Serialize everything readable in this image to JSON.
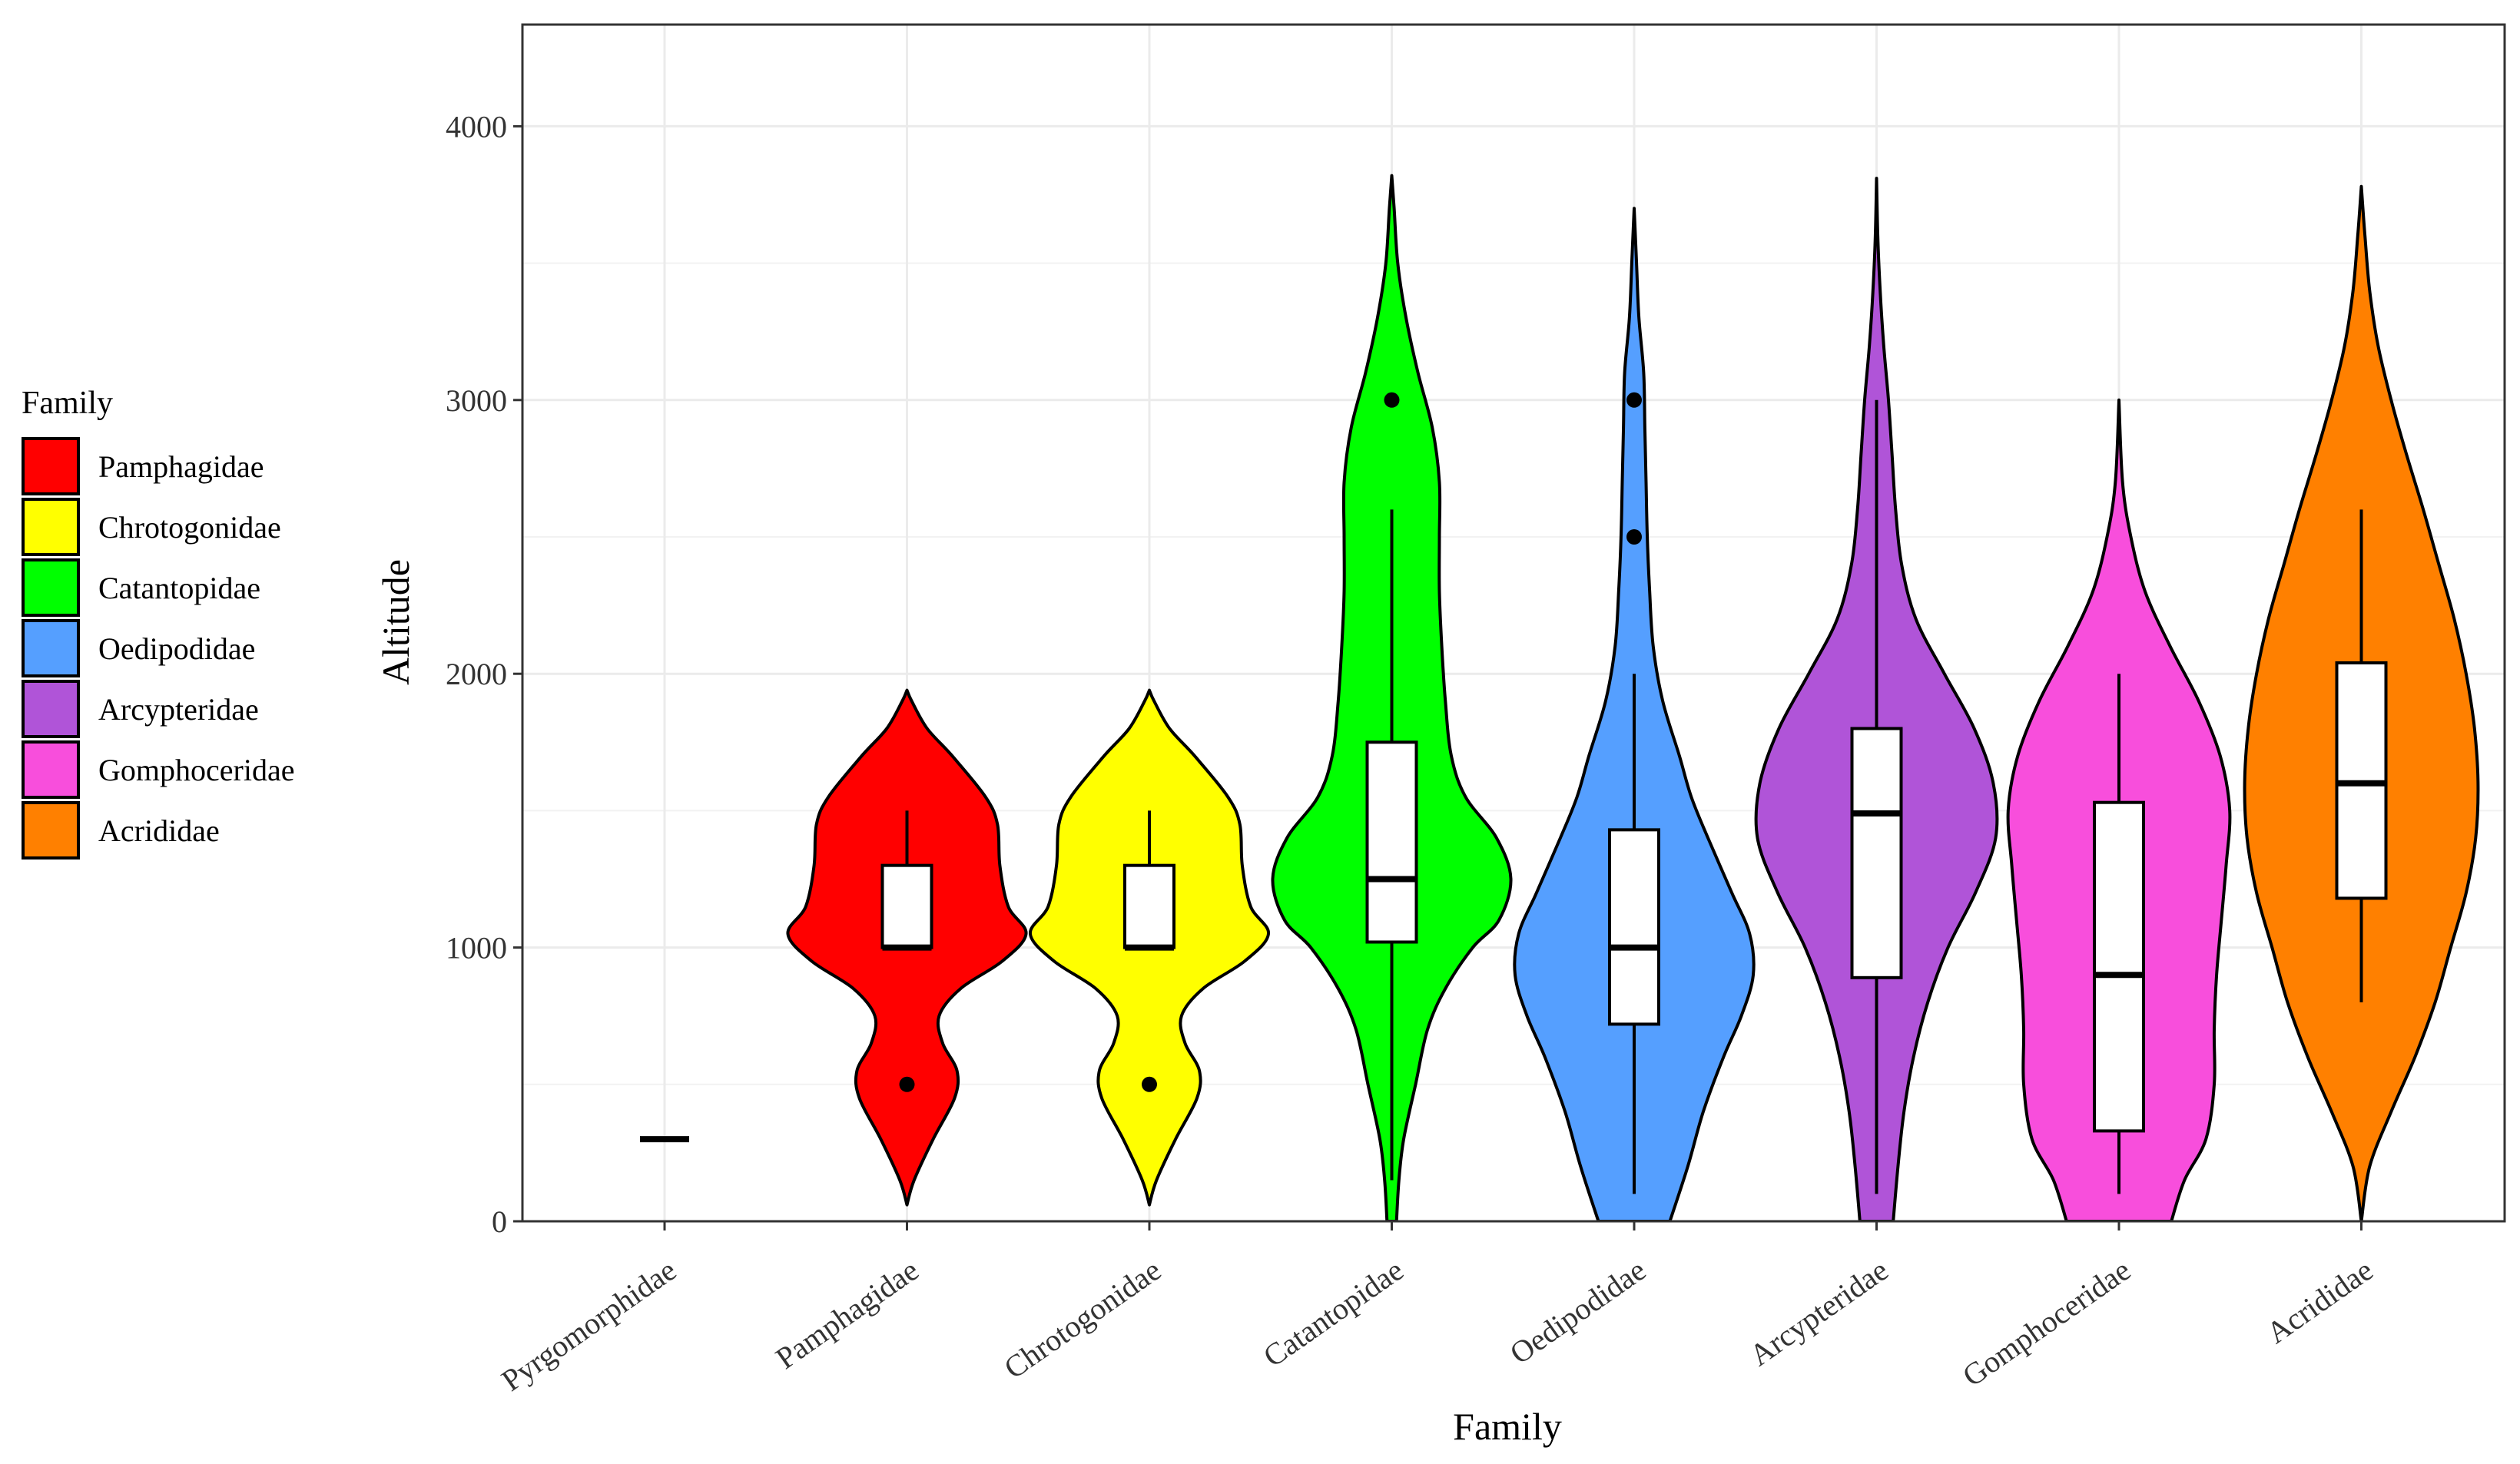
{
  "chart_data": {
    "type": "violin",
    "title": "",
    "xlabel": "Family",
    "ylabel": "Altitude",
    "ylim": [
      0,
      4300
    ],
    "yticks": [
      0,
      1000,
      2000,
      3000,
      4000
    ],
    "grid": true,
    "legend": {
      "title": "Family",
      "position": "left",
      "entries": [
        {
          "name": "Pamphagidae",
          "color": "#FF0000"
        },
        {
          "name": "Chrotogonidae",
          "color": "#FFFF00"
        },
        {
          "name": "Catantopidae",
          "color": "#00FF00"
        },
        {
          "name": "Oedipodidae",
          "color": "#559FFF"
        },
        {
          "name": "Arcypteridae",
          "color": "#B054D8"
        },
        {
          "name": "Gomphoceridae",
          "color": "#F84EDC"
        },
        {
          "name": "Acrididae",
          "color": "#FF8000"
        }
      ]
    },
    "categories": [
      "Pyrgomorphidae",
      "Pamphagidae",
      "Chrotogonidae",
      "Catantopidae",
      "Oedipodidae",
      "Arcypteridae",
      "Gomphoceridae",
      "Acrididae"
    ],
    "series": [
      {
        "name": "Pyrgomorphidae",
        "color": "#000000",
        "median": 300,
        "q1": 300,
        "q3": 300,
        "whisker_low": 300,
        "whisker_high": 300,
        "outliers": [],
        "density": [
          [
            300,
            0.1
          ]
        ]
      },
      {
        "name": "Pamphagidae",
        "color": "#FF0000",
        "median": 1000,
        "q1": 1000,
        "q3": 1300,
        "whisker_low": 1000,
        "whisker_high": 1500,
        "outliers": [
          500
        ],
        "density": [
          [
            60,
            0
          ],
          [
            150,
            0.06
          ],
          [
            300,
            0.22
          ],
          [
            450,
            0.4
          ],
          [
            550,
            0.42
          ],
          [
            650,
            0.3
          ],
          [
            750,
            0.27
          ],
          [
            850,
            0.45
          ],
          [
            950,
            0.8
          ],
          [
            1050,
            1.0
          ],
          [
            1150,
            0.85
          ],
          [
            1300,
            0.78
          ],
          [
            1450,
            0.76
          ],
          [
            1550,
            0.66
          ],
          [
            1700,
            0.38
          ],
          [
            1800,
            0.17
          ],
          [
            1900,
            0.04
          ],
          [
            1940,
            0
          ]
        ]
      },
      {
        "name": "Chrotogonidae",
        "color": "#FFFF00",
        "median": 1000,
        "q1": 1000,
        "q3": 1300,
        "whisker_low": 1000,
        "whisker_high": 1500,
        "outliers": [
          500
        ],
        "density": [
          [
            60,
            0
          ],
          [
            150,
            0.06
          ],
          [
            300,
            0.22
          ],
          [
            450,
            0.4
          ],
          [
            550,
            0.42
          ],
          [
            650,
            0.3
          ],
          [
            750,
            0.27
          ],
          [
            850,
            0.45
          ],
          [
            950,
            0.8
          ],
          [
            1050,
            1.0
          ],
          [
            1150,
            0.85
          ],
          [
            1300,
            0.78
          ],
          [
            1450,
            0.76
          ],
          [
            1550,
            0.66
          ],
          [
            1700,
            0.38
          ],
          [
            1800,
            0.17
          ],
          [
            1900,
            0.04
          ],
          [
            1940,
            0
          ]
        ]
      },
      {
        "name": "Catantopidae",
        "color": "#00FF00",
        "median": 1250,
        "q1": 1020,
        "q3": 1750,
        "whisker_low": 150,
        "whisker_high": 2600,
        "outliers": [
          3000
        ],
        "density": [
          [
            0,
            0.04
          ],
          [
            150,
            0.06
          ],
          [
            300,
            0.1
          ],
          [
            500,
            0.2
          ],
          [
            700,
            0.3
          ],
          [
            850,
            0.45
          ],
          [
            1000,
            0.68
          ],
          [
            1100,
            0.9
          ],
          [
            1250,
            1.0
          ],
          [
            1400,
            0.88
          ],
          [
            1550,
            0.62
          ],
          [
            1700,
            0.5
          ],
          [
            1900,
            0.45
          ],
          [
            2100,
            0.42
          ],
          [
            2300,
            0.4
          ],
          [
            2500,
            0.4
          ],
          [
            2700,
            0.4
          ],
          [
            2900,
            0.34
          ],
          [
            3100,
            0.22
          ],
          [
            3300,
            0.12
          ],
          [
            3500,
            0.05
          ],
          [
            3700,
            0.02
          ],
          [
            3820,
            0
          ]
        ]
      },
      {
        "name": "Oedipodidae",
        "color": "#559FFF",
        "median": 1000,
        "q1": 720,
        "q3": 1430,
        "whisker_low": 100,
        "whisker_high": 2000,
        "outliers": [
          2500,
          3000
        ],
        "density": [
          [
            0,
            0.3
          ],
          [
            200,
            0.45
          ],
          [
            400,
            0.58
          ],
          [
            600,
            0.75
          ],
          [
            750,
            0.9
          ],
          [
            900,
            1.0
          ],
          [
            1050,
            0.97
          ],
          [
            1200,
            0.82
          ],
          [
            1400,
            0.62
          ],
          [
            1550,
            0.48
          ],
          [
            1700,
            0.38
          ],
          [
            1900,
            0.24
          ],
          [
            2100,
            0.16
          ],
          [
            2300,
            0.13
          ],
          [
            2500,
            0.11
          ],
          [
            2700,
            0.1
          ],
          [
            2900,
            0.09
          ],
          [
            3100,
            0.08
          ],
          [
            3300,
            0.04
          ],
          [
            3500,
            0.02
          ],
          [
            3700,
            0
          ]
        ]
      },
      {
        "name": "Arcypteridae",
        "color": "#B054D8",
        "median": 1490,
        "q1": 890,
        "q3": 1800,
        "whisker_low": 100,
        "whisker_high": 3000,
        "outliers": [],
        "density": [
          [
            0,
            0.14
          ],
          [
            200,
            0.18
          ],
          [
            400,
            0.23
          ],
          [
            600,
            0.31
          ],
          [
            800,
            0.43
          ],
          [
            1000,
            0.6
          ],
          [
            1200,
            0.83
          ],
          [
            1400,
            1.0
          ],
          [
            1600,
            0.98
          ],
          [
            1800,
            0.82
          ],
          [
            2000,
            0.57
          ],
          [
            2200,
            0.33
          ],
          [
            2400,
            0.21
          ],
          [
            2600,
            0.16
          ],
          [
            2800,
            0.13
          ],
          [
            3000,
            0.1
          ],
          [
            3200,
            0.06
          ],
          [
            3400,
            0.03
          ],
          [
            3600,
            0.01
          ],
          [
            3810,
            0
          ]
        ]
      },
      {
        "name": "Gomphoceridae",
        "color": "#F84EDC",
        "median": 900,
        "q1": 330,
        "q3": 1530,
        "whisker_low": 100,
        "whisker_high": 2000,
        "outliers": [],
        "density": [
          [
            0,
            0.44
          ],
          [
            150,
            0.55
          ],
          [
            300,
            0.73
          ],
          [
            500,
            0.8
          ],
          [
            700,
            0.8
          ],
          [
            900,
            0.82
          ],
          [
            1100,
            0.86
          ],
          [
            1300,
            0.9
          ],
          [
            1500,
            0.93
          ],
          [
            1700,
            0.85
          ],
          [
            1900,
            0.67
          ],
          [
            2100,
            0.43
          ],
          [
            2300,
            0.22
          ],
          [
            2500,
            0.1
          ],
          [
            2700,
            0.03
          ],
          [
            3000,
            0
          ]
        ]
      },
      {
        "name": "Acrididae",
        "color": "#FF8000",
        "median": 1600,
        "q1": 1180,
        "q3": 2040,
        "whisker_low": 800,
        "whisker_high": 2600,
        "outliers": [],
        "density": [
          [
            0,
            0
          ],
          [
            200,
            0.07
          ],
          [
            400,
            0.25
          ],
          [
            600,
            0.45
          ],
          [
            800,
            0.62
          ],
          [
            1000,
            0.75
          ],
          [
            1200,
            0.88
          ],
          [
            1400,
            0.96
          ],
          [
            1600,
            0.98
          ],
          [
            1800,
            0.95
          ],
          [
            2000,
            0.88
          ],
          [
            2200,
            0.78
          ],
          [
            2400,
            0.65
          ],
          [
            2600,
            0.52
          ],
          [
            2800,
            0.38
          ],
          [
            3000,
            0.25
          ],
          [
            3200,
            0.14
          ],
          [
            3400,
            0.07
          ],
          [
            3600,
            0.03
          ],
          [
            3780,
            0
          ]
        ]
      }
    ]
  }
}
